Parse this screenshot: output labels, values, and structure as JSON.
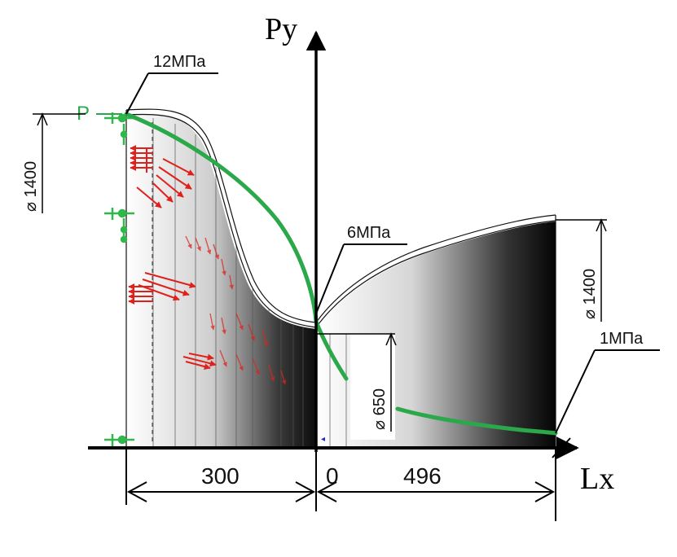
{
  "axes": {
    "y_label": "Py",
    "x_label": "Lx"
  },
  "pressure_labels": {
    "inlet": "12МПа",
    "throat": "6МПа",
    "outlet": "1МПа"
  },
  "pressure_curve_label": "P",
  "diameters": {
    "inlet": "⌀ 1400",
    "throat": "⌀ 650",
    "outlet": "⌀ 1400"
  },
  "lengths": {
    "converging": "300",
    "origin": "0",
    "diverging": "496"
  },
  "colors": {
    "pressure_curve": "#2aa84a",
    "force_arrows": "#e0201a",
    "support_symbols": "#2fb84a",
    "nozzle_shade": "#101010"
  }
}
